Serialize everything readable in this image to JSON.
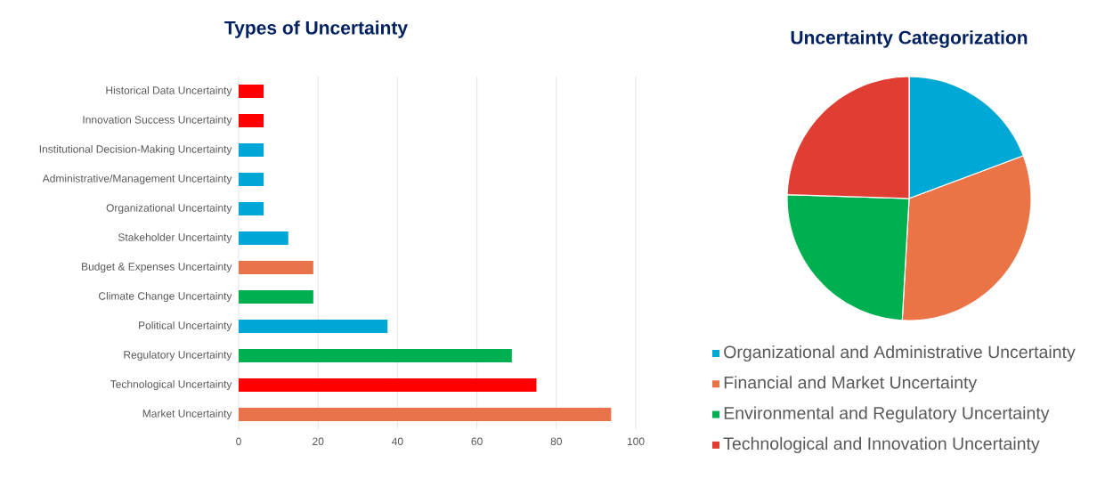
{
  "chart_data": [
    {
      "type": "bar",
      "orientation": "horizontal",
      "title": "Types of Uncertainty",
      "categories": [
        "Historical Data Uncertainty",
        "Innovation Success Uncertainty",
        "Institutional Decision-Making Uncertainty",
        "Administrative/Management Uncertainty",
        "Organizational Uncertainty",
        "Stakeholder Uncertainty",
        "Budget & Expenses Uncertainty",
        "Climate Change Uncertainty",
        "Political Uncertainty",
        "Regulatory Uncertainty",
        "Technological Uncertainty",
        "Market Uncertainty"
      ],
      "values": [
        6.3,
        6.3,
        6.3,
        6.3,
        6.3,
        12.5,
        18.8,
        18.8,
        37.5,
        68.8,
        75,
        93.8
      ],
      "colors": [
        "#ff0000",
        "#ff0000",
        "#00a6d6",
        "#00a6d6",
        "#00a6d6",
        "#00a6d6",
        "#e8734a",
        "#00b050",
        "#00a6d6",
        "#00b050",
        "#ff0000",
        "#e8734a"
      ],
      "xlim": [
        0,
        100
      ],
      "xticks": [
        0,
        20,
        40,
        60,
        80,
        100
      ],
      "grid": "x"
    },
    {
      "type": "pie",
      "title": "Uncertainty Categorization",
      "categories": [
        "Organizational and Administrative Uncertainty",
        "Financial and Market Uncertainty",
        "Environmental and Regulatory Uncertainty",
        "Technological and Innovation Uncertainty"
      ],
      "values": [
        19.3,
        31.6,
        24.6,
        24.5
      ],
      "colors": [
        "#00a8d6",
        "#eb7447",
        "#00b050",
        "#e03e33"
      ],
      "legend": "bottom"
    }
  ]
}
